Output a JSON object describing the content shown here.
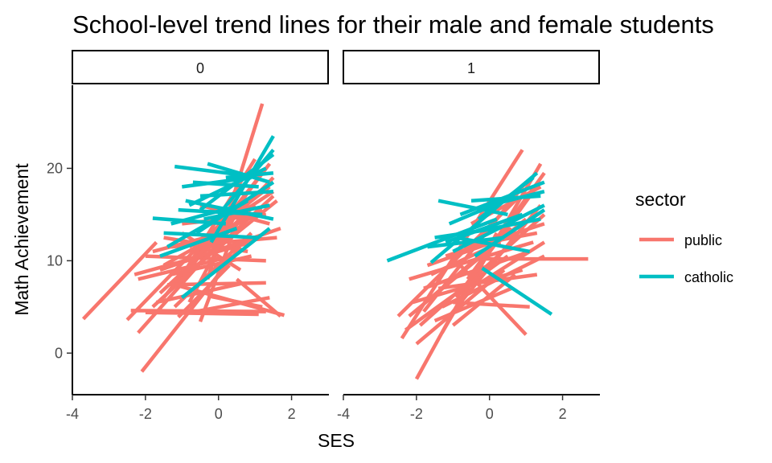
{
  "chart_data": {
    "type": "line",
    "title": "School-level trend lines for their male and female students",
    "xlabel": "SES",
    "ylabel": "Math Achievement",
    "xlim": [
      -4,
      3
    ],
    "ylim": [
      -4.5,
      29
    ],
    "x_ticks": [
      -4,
      -2,
      0,
      2
    ],
    "y_ticks": [
      0,
      10,
      20
    ],
    "grid": false,
    "facets": [
      "0",
      "1"
    ],
    "legend": {
      "title": "sector",
      "position": "right",
      "entries": [
        {
          "label": "public",
          "color": "#F8766D"
        },
        {
          "label": "catholic",
          "color": "#00BFC4"
        }
      ]
    },
    "series": [
      {
        "facet": "0",
        "sector": "public",
        "segments": [
          [
            [
              -3.7,
              3.7
            ],
            [
              -1.7,
              12.0
            ]
          ],
          [
            [
              -2.5,
              3.6
            ],
            [
              0.3,
              15.0
            ]
          ],
          [
            [
              -2.2,
              2.2
            ],
            [
              0.8,
              15.5
            ]
          ],
          [
            [
              -2.1,
              -2.0
            ],
            [
              0.6,
              11.5
            ]
          ],
          [
            [
              -2.4,
              4.6
            ],
            [
              1.3,
              4.5
            ]
          ],
          [
            [
              -2.3,
              8.5
            ],
            [
              0.9,
              12.0
            ]
          ],
          [
            [
              -2.0,
              4.4
            ],
            [
              1.1,
              4.2
            ]
          ],
          [
            [
              -1.2,
              7.4
            ],
            [
              1.8,
              4.1
            ]
          ],
          [
            [
              -0.5,
              3.4
            ],
            [
              0.5,
              14.0
            ]
          ],
          [
            [
              -1.8,
              5.0
            ],
            [
              1.5,
              17.0
            ]
          ],
          [
            [
              -1.5,
              6.0
            ],
            [
              1.2,
              19.5
            ]
          ],
          [
            [
              -1.0,
              8.0
            ],
            [
              1.4,
              20.5
            ]
          ],
          [
            [
              -0.8,
              5.5
            ],
            [
              0.8,
              17.5
            ]
          ],
          [
            [
              -1.5,
              9.5
            ],
            [
              1.2,
              15.5
            ]
          ],
          [
            [
              -0.3,
              8.0
            ],
            [
              1.2,
              27.0
            ]
          ],
          [
            [
              -1.6,
              6.5
            ],
            [
              1.0,
              16.0
            ]
          ],
          [
            [
              -1.3,
              11.5
            ],
            [
              1.6,
              12.5
            ]
          ],
          [
            [
              -0.9,
              4.3
            ],
            [
              1.4,
              6.0
            ]
          ],
          [
            [
              -1.0,
              13.0
            ],
            [
              0.6,
              9.0
            ]
          ],
          [
            [
              -2.0,
              10.5
            ],
            [
              1.3,
              10.0
            ]
          ],
          [
            [
              -1.4,
              7.4
            ],
            [
              1.3,
              7.6
            ]
          ],
          [
            [
              -0.4,
              12.5
            ],
            [
              1.4,
              18.0
            ]
          ],
          [
            [
              -1.2,
              5.0
            ],
            [
              0.9,
              13.0
            ]
          ],
          [
            [
              -1.6,
              9.0
            ],
            [
              1.7,
              13.5
            ]
          ],
          [
            [
              -0.7,
              10.0
            ],
            [
              1.5,
              19.0
            ]
          ],
          [
            [
              -1.1,
              3.9
            ],
            [
              0.3,
              9.5
            ]
          ],
          [
            [
              -0.5,
              16.0
            ],
            [
              1.4,
              14.0
            ]
          ],
          [
            [
              -1.8,
              11.0
            ],
            [
              0.6,
              13.5
            ]
          ],
          [
            [
              -0.9,
              9.0
            ],
            [
              1.0,
              21.0
            ]
          ],
          [
            [
              -2.2,
              8.0
            ],
            [
              0.4,
              10.5
            ]
          ],
          [
            [
              -0.3,
              6.2
            ],
            [
              1.2,
              5.0
            ]
          ],
          [
            [
              -1.0,
              14.0
            ],
            [
              1.3,
              15.0
            ]
          ],
          [
            [
              -1.5,
              12.5
            ],
            [
              0.8,
              11.0
            ]
          ],
          [
            [
              -0.6,
              9.5
            ],
            [
              1.6,
              16.5
            ]
          ],
          [
            [
              -1.3,
              8.5
            ],
            [
              0.9,
              10.5
            ]
          ],
          [
            [
              0.5,
              8.0
            ],
            [
              1.7,
              4.0
            ]
          ],
          [
            [
              -1.7,
              5.5
            ],
            [
              0.6,
              7.5
            ]
          ],
          [
            [
              -0.8,
              11.5
            ],
            [
              1.5,
              17.5
            ]
          ]
        ]
      },
      {
        "facet": "0",
        "sector": "catholic",
        "segments": [
          [
            [
              -1.2,
              20.2
            ],
            [
              0.8,
              19.2
            ]
          ],
          [
            [
              -1.8,
              14.6
            ],
            [
              0.2,
              14.0
            ]
          ],
          [
            [
              -1.5,
              13.0
            ],
            [
              1.1,
              12.5
            ]
          ],
          [
            [
              -0.8,
              16.0
            ],
            [
              1.3,
              20.0
            ]
          ],
          [
            [
              -0.5,
              15.5
            ],
            [
              1.5,
              21.5
            ]
          ],
          [
            [
              -1.0,
              18.0
            ],
            [
              0.9,
              19.0
            ]
          ],
          [
            [
              -0.2,
              12.0
            ],
            [
              1.5,
              23.5
            ]
          ],
          [
            [
              -1.3,
              14.0
            ],
            [
              0.6,
              16.0
            ]
          ],
          [
            [
              -0.6,
              13.0
            ],
            [
              1.5,
              18.5
            ]
          ],
          [
            [
              -1.0,
              6.0
            ],
            [
              1.4,
              13.5
            ]
          ],
          [
            [
              -1.6,
              10.5
            ],
            [
              0.5,
              13.5
            ]
          ],
          [
            [
              -0.5,
              17.0
            ],
            [
              1.5,
              17.5
            ]
          ],
          [
            [
              -1.1,
              15.5
            ],
            [
              1.2,
              15.0
            ]
          ],
          [
            [
              0.0,
              15.0
            ],
            [
              1.5,
              22.0
            ]
          ],
          [
            [
              -0.7,
              18.5
            ],
            [
              1.1,
              18.0
            ]
          ],
          [
            [
              -1.4,
              11.5
            ],
            [
              0.8,
              16.5
            ]
          ],
          [
            [
              -0.4,
              14.5
            ],
            [
              1.4,
              16.0
            ]
          ],
          [
            [
              0.2,
              19.0
            ],
            [
              1.5,
              19.5
            ]
          ],
          [
            [
              -0.9,
              16.5
            ],
            [
              1.5,
              14.5
            ]
          ],
          [
            [
              -0.3,
              20.5
            ],
            [
              1.4,
              18.5
            ]
          ]
        ]
      },
      {
        "facet": "1",
        "sector": "public",
        "segments": [
          [
            [
              -2.5,
              4.0
            ],
            [
              0.7,
              16.5
            ]
          ],
          [
            [
              -2.4,
              1.6
            ],
            [
              0.9,
              22.0
            ]
          ],
          [
            [
              -2.0,
              -2.8
            ],
            [
              0.2,
              13.0
            ]
          ],
          [
            [
              -1.8,
              4.5
            ],
            [
              1.0,
              18.5
            ]
          ],
          [
            [
              -2.2,
              8.0
            ],
            [
              1.2,
              12.0
            ]
          ],
          [
            [
              -1.3,
              2.2
            ],
            [
              1.4,
              20.5
            ]
          ],
          [
            [
              -1.6,
              6.0
            ],
            [
              0.6,
              13.5
            ]
          ],
          [
            [
              -0.4,
              10.2
            ],
            [
              2.7,
              10.2
            ]
          ],
          [
            [
              -1.0,
              5.5
            ],
            [
              1.1,
              5.0
            ]
          ],
          [
            [
              -0.8,
              9.5
            ],
            [
              1.0,
              2.0
            ]
          ],
          [
            [
              -1.9,
              3.0
            ],
            [
              1.5,
              15.0
            ]
          ],
          [
            [
              -1.4,
              7.0
            ],
            [
              1.3,
              8.5
            ]
          ],
          [
            [
              -2.3,
              2.5
            ],
            [
              0.5,
              10.5
            ]
          ],
          [
            [
              -1.1,
              4.0
            ],
            [
              1.4,
              16.0
            ]
          ],
          [
            [
              -0.6,
              8.0
            ],
            [
              1.5,
              19.5
            ]
          ],
          [
            [
              -1.7,
              9.5
            ],
            [
              0.8,
              13.0
            ]
          ],
          [
            [
              -2.1,
              5.5
            ],
            [
              0.9,
              9.0
            ]
          ],
          [
            [
              -1.2,
              10.5
            ],
            [
              1.5,
              14.0
            ]
          ],
          [
            [
              -0.9,
              6.0
            ],
            [
              1.2,
              17.5
            ]
          ],
          [
            [
              -1.5,
              3.5
            ],
            [
              0.6,
              7.0
            ]
          ],
          [
            [
              -0.3,
              7.5
            ],
            [
              1.5,
              12.0
            ]
          ],
          [
            [
              -1.8,
              7.0
            ],
            [
              1.1,
              11.0
            ]
          ],
          [
            [
              -1.0,
              3.0
            ],
            [
              0.7,
              8.5
            ]
          ],
          [
            [
              -2.0,
              1.0
            ],
            [
              0.4,
              9.0
            ]
          ],
          [
            [
              -0.7,
              11.5
            ],
            [
              1.3,
              13.0
            ]
          ],
          [
            [
              -1.3,
              5.0
            ],
            [
              1.5,
              10.5
            ]
          ],
          [
            [
              -0.5,
              14.0
            ],
            [
              1.4,
              18.0
            ]
          ],
          [
            [
              -1.6,
              8.5
            ],
            [
              0.3,
              12.0
            ]
          ],
          [
            [
              -2.2,
              4.0
            ],
            [
              1.0,
              14.5
            ]
          ]
        ]
      },
      {
        "facet": "1",
        "sector": "catholic",
        "segments": [
          [
            [
              -2.8,
              10.0
            ],
            [
              0.2,
              14.5
            ]
          ],
          [
            [
              -1.4,
              16.5
            ],
            [
              0.5,
              15.0
            ]
          ],
          [
            [
              -1.5,
              12.5
            ],
            [
              0.2,
              13.5
            ]
          ],
          [
            [
              -0.2,
              9.2
            ],
            [
              1.7,
              4.2
            ]
          ],
          [
            [
              -1.6,
              9.8
            ],
            [
              1.3,
              19.5
            ]
          ],
          [
            [
              -0.8,
              15.0
            ],
            [
              1.5,
              18.5
            ]
          ],
          [
            [
              -1.2,
              12.0
            ],
            [
              0.9,
              15.0
            ]
          ],
          [
            [
              -0.5,
              16.5
            ],
            [
              1.4,
              17.0
            ]
          ],
          [
            [
              -1.0,
              11.0
            ],
            [
              1.5,
              16.0
            ]
          ],
          [
            [
              -0.3,
              14.5
            ],
            [
              1.2,
              19.0
            ]
          ],
          [
            [
              -1.7,
              11.5
            ],
            [
              0.4,
              12.5
            ]
          ],
          [
            [
              -0.6,
              13.0
            ],
            [
              1.4,
              14.5
            ]
          ],
          [
            [
              0.0,
              16.0
            ],
            [
              1.5,
              17.5
            ]
          ],
          [
            [
              -0.9,
              12.5
            ],
            [
              1.1,
              11.0
            ]
          ],
          [
            [
              -0.4,
              10.5
            ],
            [
              1.5,
              15.5
            ]
          ],
          [
            [
              -1.1,
              14.0
            ],
            [
              0.7,
              17.0
            ]
          ]
        ]
      }
    ]
  }
}
